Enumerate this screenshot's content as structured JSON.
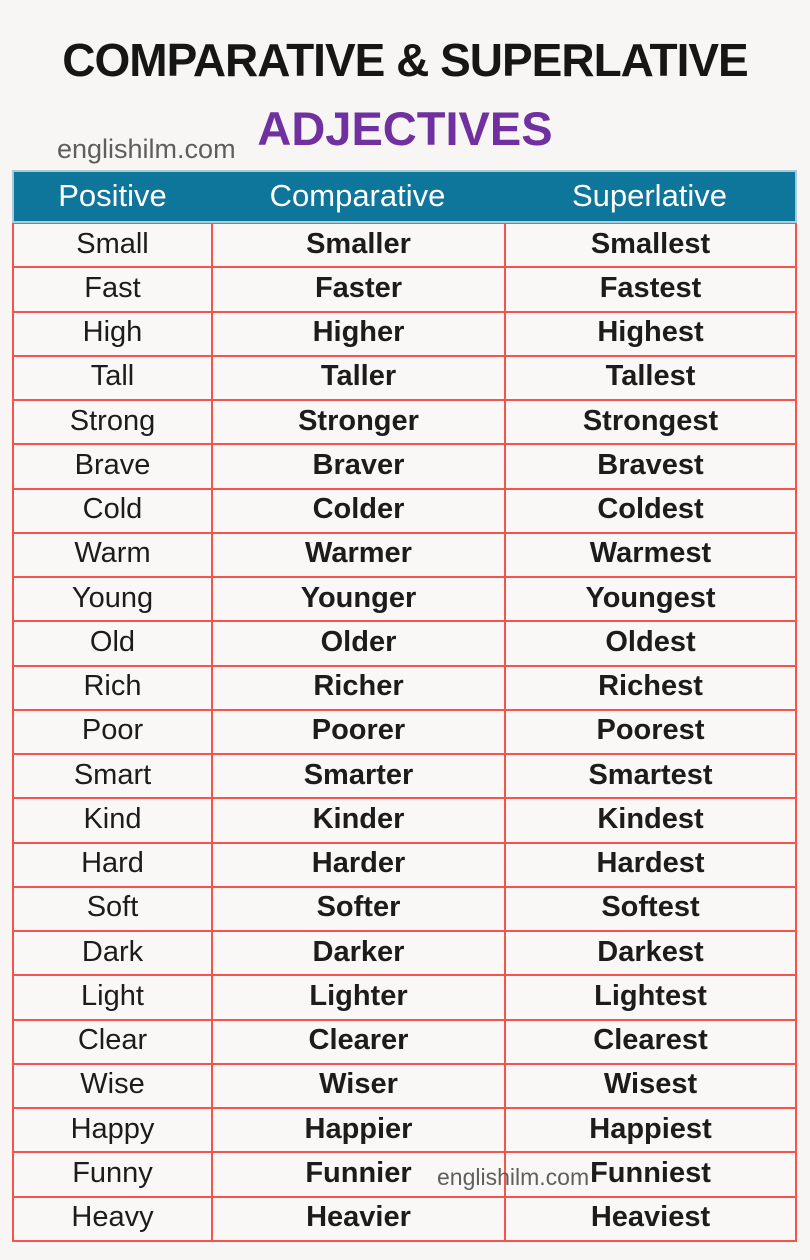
{
  "header": {
    "title": "COMPARATIVE & SUPERLATIVE",
    "subtitle": "ADJECTIVES",
    "watermark": "englishilm.com"
  },
  "watermark_middle": "englishilm.com",
  "table": {
    "headers": [
      "Positive",
      "Comparative",
      "Superlative"
    ],
    "rows": [
      [
        "Small",
        "Smaller",
        "Smallest"
      ],
      [
        "Fast",
        "Faster",
        "Fastest"
      ],
      [
        "High",
        "Higher",
        "Highest"
      ],
      [
        "Tall",
        "Taller",
        "Tallest"
      ],
      [
        "Strong",
        "Stronger",
        "Strongest"
      ],
      [
        "Brave",
        "Braver",
        "Bravest"
      ],
      [
        "Cold",
        "Colder",
        "Coldest"
      ],
      [
        "Warm",
        "Warmer",
        "Warmest"
      ],
      [
        "Young",
        "Younger",
        "Youngest"
      ],
      [
        "Old",
        "Older",
        "Oldest"
      ],
      [
        "Rich",
        "Richer",
        "Richest"
      ],
      [
        "Poor",
        "Poorer",
        "Poorest"
      ],
      [
        "Smart",
        "Smarter",
        "Smartest"
      ],
      [
        "Kind",
        "Kinder",
        "Kindest"
      ],
      [
        "Hard",
        "Harder",
        "Hardest"
      ],
      [
        "Soft",
        "Softer",
        "Softest"
      ],
      [
        "Dark",
        "Darker",
        "Darkest"
      ],
      [
        "Light",
        "Lighter",
        "Lightest"
      ],
      [
        "Clear",
        "Clearer",
        "Clearest"
      ],
      [
        "Wise",
        "Wiser",
        "Wisest"
      ],
      [
        "Happy",
        "Happier",
        "Happiest"
      ],
      [
        "Funny",
        "Funnier",
        "Funniest"
      ],
      [
        "Heavy",
        "Heavier",
        "Heaviest"
      ]
    ]
  },
  "colors": {
    "page_bg": "#f7f6f4",
    "cell_bg": "#f9f8f7",
    "header_bg": "#0e759b",
    "header_edge": "#a9cbd9",
    "border_red": "#f4544c",
    "accent_purple": "#7030a0",
    "title_color": "#161616",
    "text_color": "#1c1c1c",
    "watermark_gray": "#5e5e5e"
  }
}
